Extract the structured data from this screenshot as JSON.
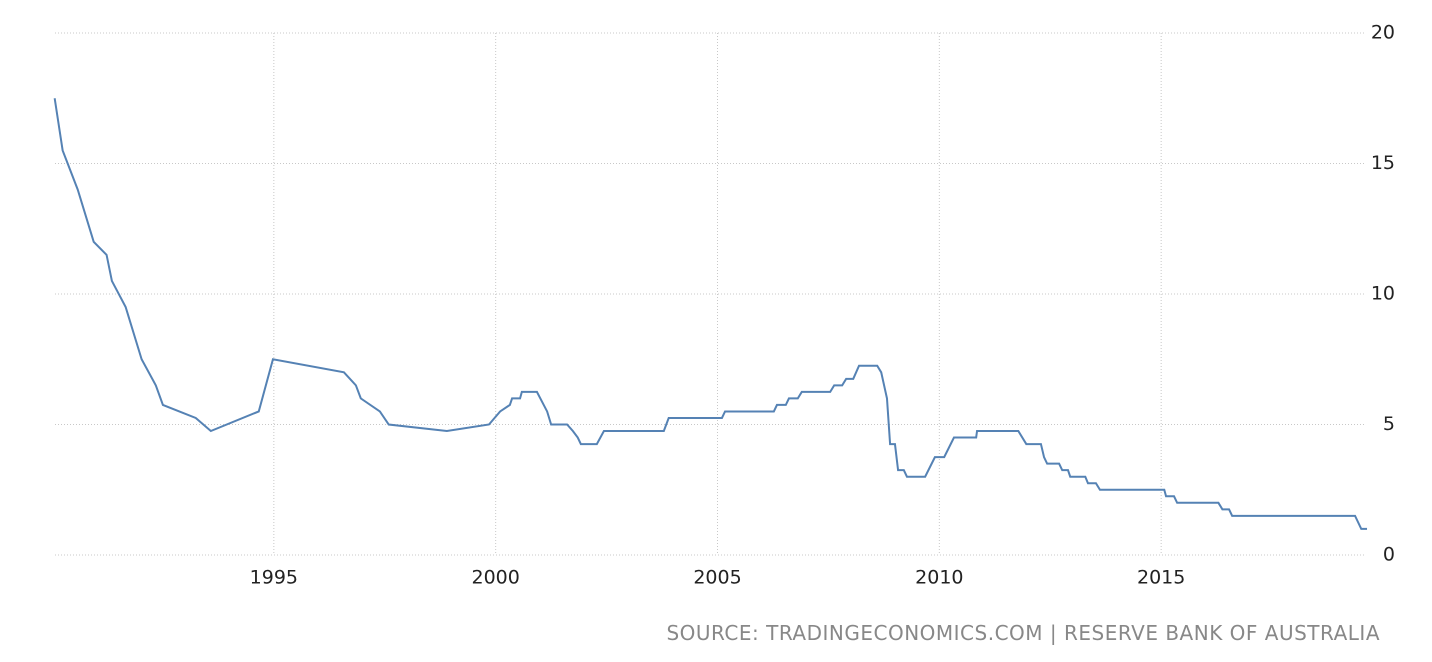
{
  "chart_data": {
    "type": "line",
    "source": "SOURCE: TRADINGECONOMICS.COM | RESERVE BANK OF AUSTRALIA",
    "xlim": [
      1990,
      2020
    ],
    "xticks": [
      1995,
      2000,
      2005,
      2010,
      2015
    ],
    "ylim": [
      0,
      20
    ],
    "yticks": [
      0,
      5,
      10,
      15,
      20
    ],
    "grid": true,
    "series": [
      {
        "color": "#5582b4",
        "x": [
          1990.06,
          1990.24,
          1990.58,
          1990.94,
          1991.23,
          1991.35,
          1991.66,
          1992.02,
          1992.34,
          1992.5,
          1993.24,
          1993.58,
          1994.66,
          1994.98,
          1996.58,
          1996.85,
          1996.96,
          1997.39,
          1997.59,
          1998.9,
          1999.85,
          2000.1,
          2000.32,
          2000.37,
          2000.55,
          2000.59,
          2000.93,
          2001.16,
          2001.25,
          2001.61,
          2001.74,
          2001.85,
          2001.92,
          2002.28,
          2002.44,
          2003.79,
          2003.9,
          2005.1,
          2005.17,
          2006.27,
          2006.34,
          2006.54,
          2006.61,
          2006.81,
          2006.9,
          2007.54,
          2007.63,
          2007.81,
          2007.9,
          2008.06,
          2008.19,
          2008.6,
          2008.69,
          2008.82,
          2008.89,
          2009.0,
          2009.07,
          2009.2,
          2009.27,
          2009.68,
          2009.9,
          2010.11,
          2010.33,
          2010.83,
          2010.85,
          2011.78,
          2011.96,
          2012.29,
          2012.36,
          2012.43,
          2012.7,
          2012.77,
          2012.9,
          2012.95,
          2013.29,
          2013.35,
          2013.53,
          2013.62,
          2015.07,
          2015.11,
          2015.29,
          2015.36,
          2016.29,
          2016.38,
          2016.53,
          2016.6,
          2019.37,
          2019.51,
          2019.64
        ],
        "values": [
          17.5,
          15.5,
          14,
          12,
          11.5,
          10.5,
          9.5,
          7.5,
          6.5,
          5.75,
          5.25,
          4.75,
          5.5,
          7.5,
          7,
          6.5,
          6,
          5.5,
          5,
          4.75,
          5,
          5.5,
          5.75,
          6,
          6,
          6.25,
          6.25,
          5.5,
          5,
          5,
          4.75,
          4.5,
          4.25,
          4.25,
          4.75,
          4.75,
          5.25,
          5.25,
          5.5,
          5.5,
          5.75,
          5.75,
          6,
          6,
          6.25,
          6.25,
          6.5,
          6.5,
          6.75,
          6.75,
          7.25,
          7.25,
          7,
          6,
          4.25,
          4.25,
          3.25,
          3.25,
          3,
          3,
          3.75,
          3.75,
          4.5,
          4.5,
          4.75,
          4.75,
          4.25,
          4.25,
          3.75,
          3.5,
          3.5,
          3.25,
          3.25,
          3,
          3,
          2.75,
          2.75,
          2.5,
          2.5,
          2.25,
          2.25,
          2,
          2,
          1.75,
          1.75,
          1.5,
          1.5,
          1,
          1
        ]
      }
    ]
  }
}
